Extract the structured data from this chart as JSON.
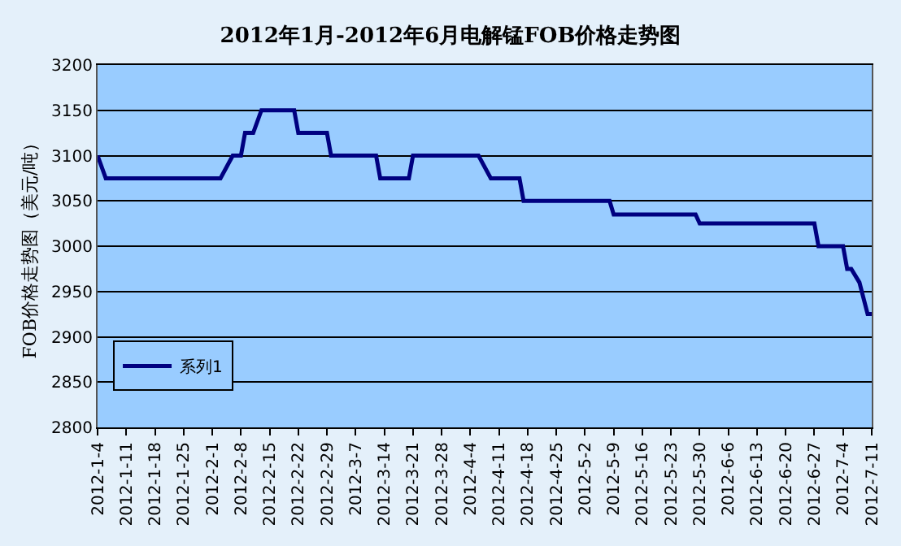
{
  "chart_data": {
    "type": "line",
    "title": "2012年1月-2012年6月电解锰FOB价格走势图",
    "ylabel": "FOB价格走势图（美元/吨）",
    "x": [
      "2012-01-04",
      "2012-01-06",
      "2012-02-03",
      "2012-02-06",
      "2012-02-08",
      "2012-02-09",
      "2012-02-11",
      "2012-02-13",
      "2012-02-21",
      "2012-02-22",
      "2012-02-29",
      "2012-03-01",
      "2012-03-12",
      "2012-03-13",
      "2012-03-20",
      "2012-03-21",
      "2012-04-06",
      "2012-04-09",
      "2012-04-16",
      "2012-04-17",
      "2012-05-08",
      "2012-05-09",
      "2012-05-29",
      "2012-05-30",
      "2012-06-27",
      "2012-06-28",
      "2012-07-04",
      "2012-07-05",
      "2012-07-06",
      "2012-07-08",
      "2012-07-10",
      "2012-07-11"
    ],
    "series": [
      {
        "name": "系列1",
        "color": "#000080",
        "values": [
          3100,
          3075,
          3075,
          3100,
          3100,
          3125,
          3125,
          3150,
          3150,
          3125,
          3125,
          3100,
          3100,
          3075,
          3075,
          3100,
          3100,
          3075,
          3075,
          3050,
          3050,
          3035,
          3035,
          3025,
          3025,
          3000,
          3000,
          2975,
          2975,
          2960,
          2925,
          2925
        ]
      }
    ],
    "xlim": [
      "2012-01-04",
      "2012-07-11"
    ],
    "xticks": [
      {
        "value": "2012-01-04",
        "label": "2012-1-4"
      },
      {
        "value": "2012-01-11",
        "label": "2012-1-11"
      },
      {
        "value": "2012-01-18",
        "label": "2012-1-18"
      },
      {
        "value": "2012-01-25",
        "label": "2012-1-25"
      },
      {
        "value": "2012-02-01",
        "label": "2012-2-1"
      },
      {
        "value": "2012-02-08",
        "label": "2012-2-8"
      },
      {
        "value": "2012-02-15",
        "label": "2012-2-15"
      },
      {
        "value": "2012-02-22",
        "label": "2012-2-22"
      },
      {
        "value": "2012-02-29",
        "label": "2012-2-29"
      },
      {
        "value": "2012-03-07",
        "label": "2012-3-7"
      },
      {
        "value": "2012-03-14",
        "label": "2012-3-14"
      },
      {
        "value": "2012-03-21",
        "label": "2012-3-21"
      },
      {
        "value": "2012-03-28",
        "label": "2012-3-28"
      },
      {
        "value": "2012-04-04",
        "label": "2012-4-4"
      },
      {
        "value": "2012-04-11",
        "label": "2012-4-11"
      },
      {
        "value": "2012-04-18",
        "label": "2012-4-18"
      },
      {
        "value": "2012-04-25",
        "label": "2012-4-25"
      },
      {
        "value": "2012-05-02",
        "label": "2012-5-2"
      },
      {
        "value": "2012-05-09",
        "label": "2012-5-9"
      },
      {
        "value": "2012-05-16",
        "label": "2012-5-16"
      },
      {
        "value": "2012-05-23",
        "label": "2012-5-23"
      },
      {
        "value": "2012-05-30",
        "label": "2012-5-30"
      },
      {
        "value": "2012-06-06",
        "label": "2012-6-6"
      },
      {
        "value": "2012-06-13",
        "label": "2012-6-13"
      },
      {
        "value": "2012-06-20",
        "label": "2012-6-20"
      },
      {
        "value": "2012-06-27",
        "label": "2012-6-27"
      },
      {
        "value": "2012-07-04",
        "label": "2012-7-4"
      },
      {
        "value": "2012-07-11",
        "label": "2012-7-11"
      }
    ],
    "ylim": [
      2800,
      3200
    ],
    "yticks": [
      2800,
      2850,
      2900,
      2950,
      3000,
      3050,
      3100,
      3150,
      3200
    ],
    "grid": "y",
    "legend": "bottom left",
    "marker": "none",
    "line_style": "solid"
  }
}
